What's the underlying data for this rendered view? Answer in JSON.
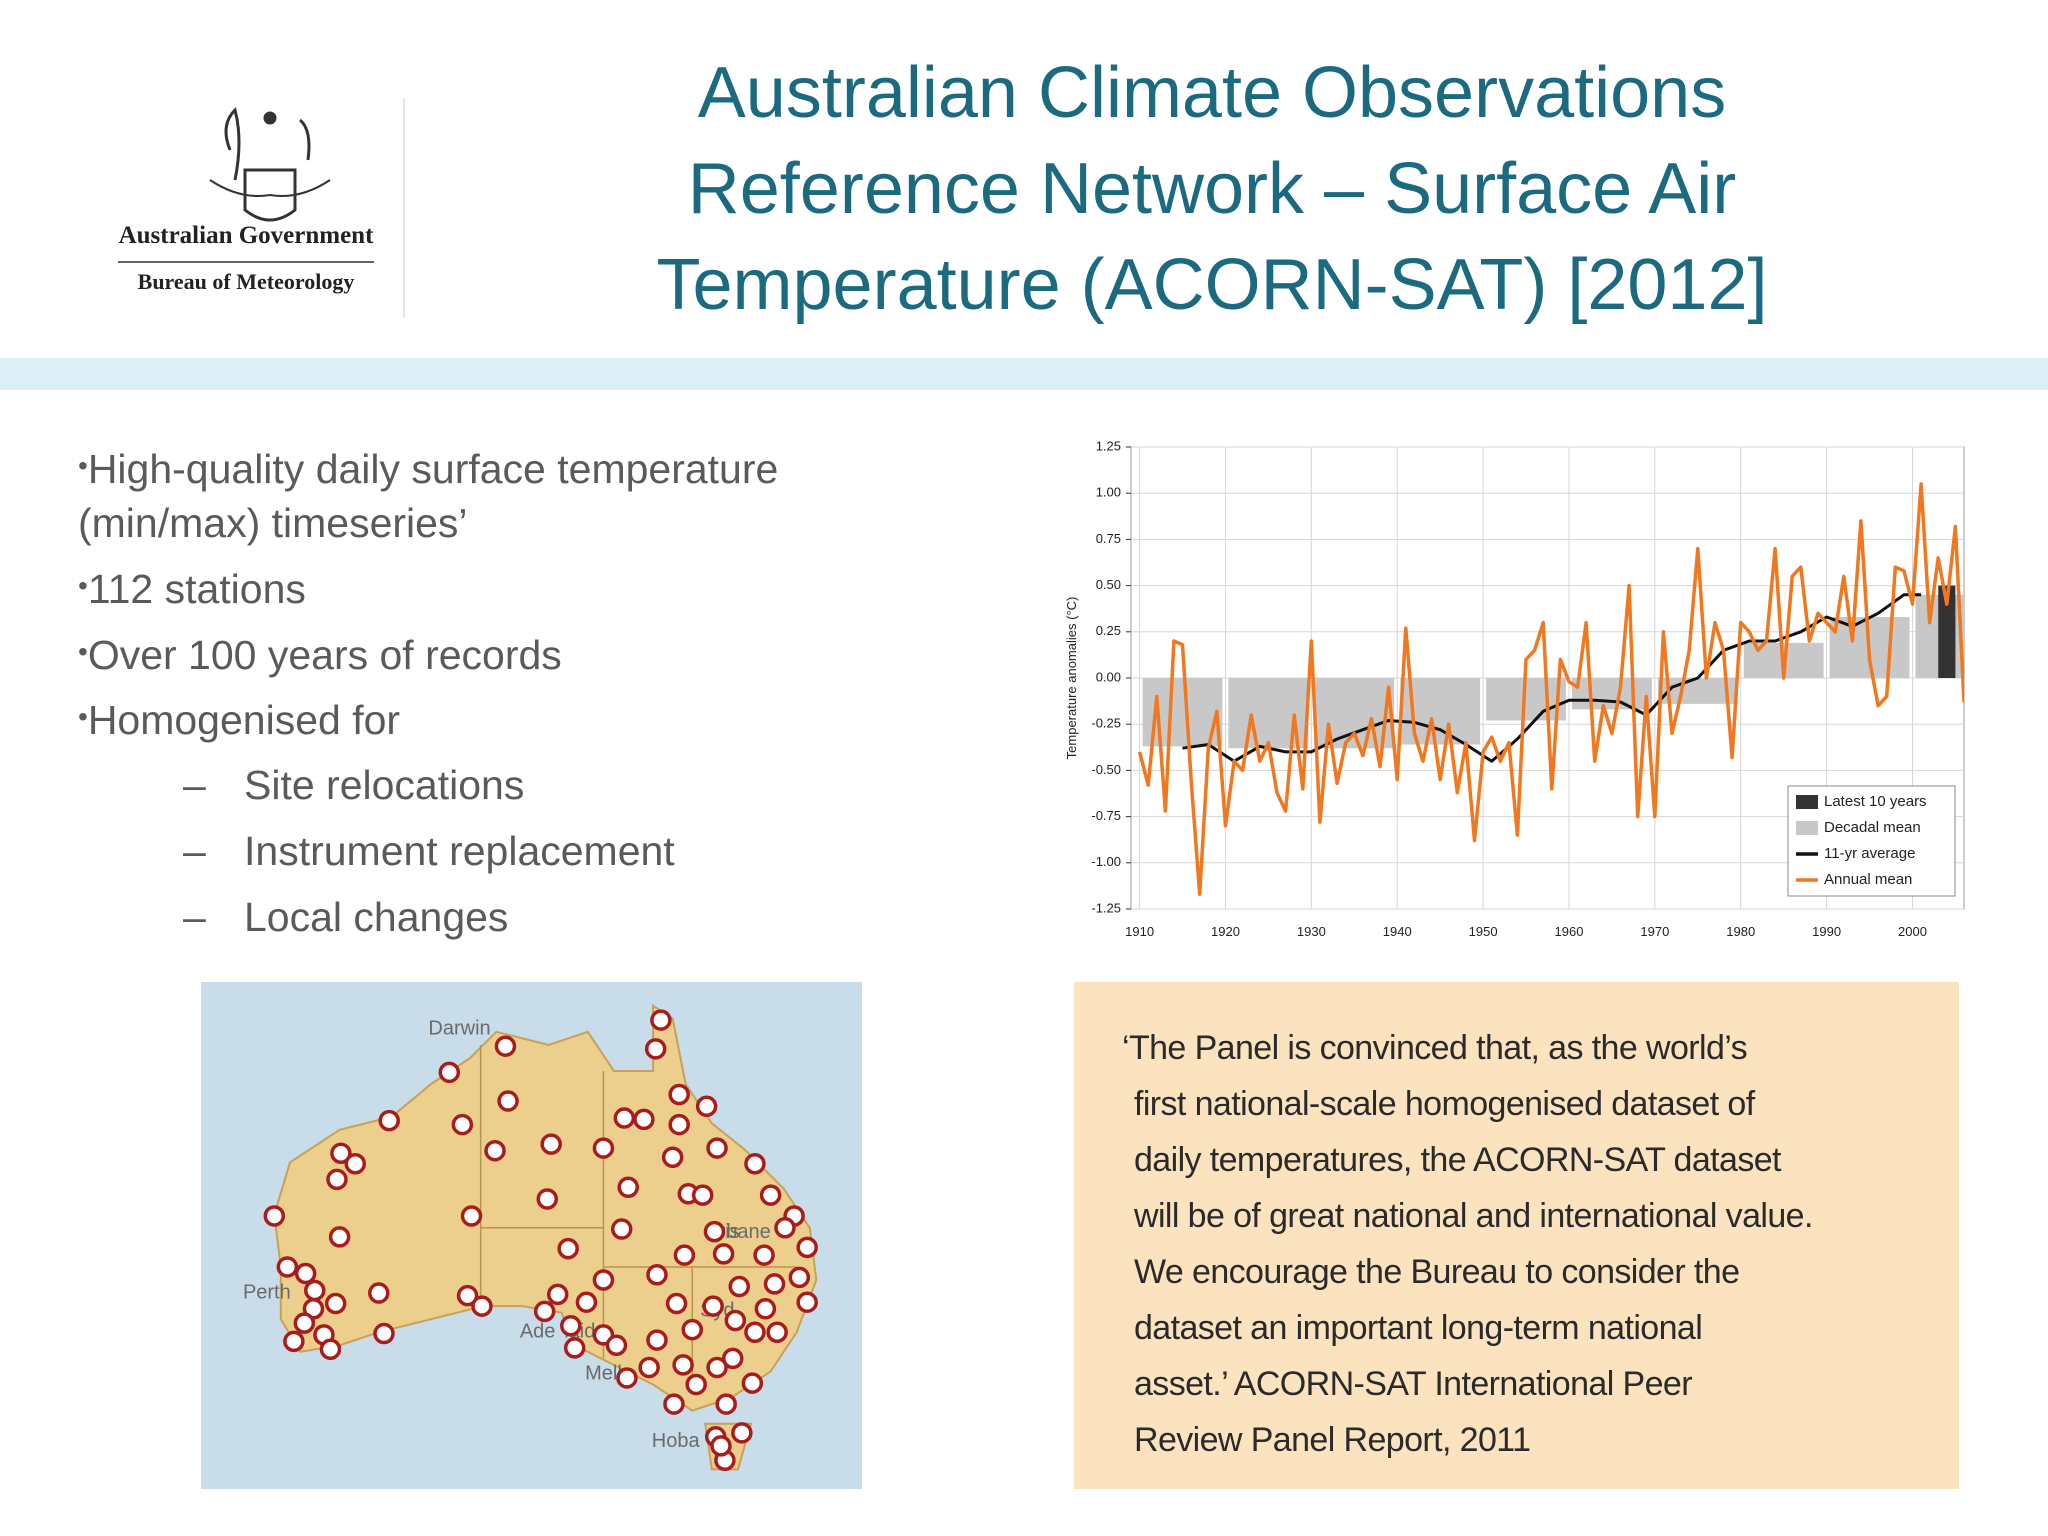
{
  "header": {
    "title_lines": [
      "Australian Climate Observations",
      "Reference Network – Surface Air",
      "Temperature (ACORN-SAT) [2012]"
    ],
    "logo": {
      "line1": "Australian Government",
      "line2": "Bureau of Meteorology"
    }
  },
  "bullets": [
    {
      "text": "High-quality daily surface temperature",
      "continuation": "(min/max) timeseries’"
    },
    {
      "text": "112 stations"
    },
    {
      "text": "Over 100 years of records"
    },
    {
      "text": "Homogenised for",
      "sub": [
        "Site relocations",
        "Instrument replacement",
        "Local changes"
      ]
    }
  ],
  "bullet_symbol": "•",
  "sub_bullet_symbol": "–",
  "map": {
    "labels": [
      "Darwin",
      "Perth",
      "Ade",
      "laide",
      "Bris",
      "bane",
      "Syd",
      "Melb",
      "Hoba"
    ]
  },
  "quote": {
    "lines": [
      "‘The Panel is convinced that, as the world’s",
      "first national-scale homogenised dataset of",
      "daily temperatures, the ACORN-SAT dataset",
      "will be of great national and international value.",
      "We encourage the Bureau to consider the",
      "dataset an important long-term national",
      "asset.’   ACORN-SAT International Peer",
      "Review Panel Report, 2011"
    ]
  },
  "chart_data": {
    "type": "line",
    "y_label": "Temperature anomalies (°C)",
    "xlim": [
      1909,
      2006
    ],
    "xticks": [
      1910,
      1920,
      1930,
      1940,
      1950,
      1960,
      1970,
      1980,
      1990,
      2000
    ],
    "ylim": [
      -1.25,
      1.25
    ],
    "yticks": [
      1.25,
      {
        "value": 1,
        "label": "1.00"
      },
      0.75,
      {
        "value": 0.5,
        "label": "0.50"
      },
      0.25,
      {
        "value": 0,
        "label": "0.00"
      },
      -0.25,
      {
        "value": -0.5,
        "label": "-0.50"
      },
      -0.75,
      {
        "value": -1,
        "label": "-1.00"
      },
      -1.25
    ],
    "grid": true,
    "legend": "lower right",
    "bar_series": [
      {
        "name": "Latest 10 years",
        "color": "#333333",
        "bins": [
          2003,
          2005
        ],
        "values": [
          0.5
        ]
      },
      {
        "name": "Decadal mean",
        "color": "#c8c8c8",
        "bins": [
          1910,
          1920,
          1930,
          1940,
          1950,
          1960,
          1970,
          1980,
          1990,
          2000,
          2010
        ],
        "values": [
          -0.37,
          -0.38,
          -0.38,
          -0.36,
          -0.23,
          -0.17,
          -0.14,
          0.19,
          0.33,
          0.45
        ]
      }
    ],
    "series": [
      {
        "name": "11-yr average",
        "color": "#111111",
        "x": [
          1915,
          1918,
          1921,
          1924,
          1927,
          1930,
          1933,
          1936,
          1939,
          1942,
          1945,
          1948,
          1951,
          1954,
          1957,
          1960,
          1963,
          1966,
          1969,
          1972,
          1975,
          1978,
          1981,
          1984,
          1987,
          1990,
          1993,
          1996,
          1999,
          2001
        ],
        "values": [
          -0.38,
          -0.36,
          -0.45,
          -0.37,
          -0.4,
          -0.4,
          -0.33,
          -0.28,
          -0.23,
          -0.24,
          -0.28,
          -0.36,
          -0.45,
          -0.33,
          -0.18,
          -0.12,
          -0.12,
          -0.13,
          -0.2,
          -0.05,
          0,
          0.15,
          0.2,
          0.2,
          0.25,
          0.33,
          0.28,
          0.35,
          0.45,
          0.45
        ]
      },
      {
        "name": "Annual mean",
        "color": "#f07820",
        "x": [
          1910,
          1911,
          1912,
          1913,
          1914,
          1915,
          1916,
          1917,
          1918,
          1919,
          1920,
          1921,
          1922,
          1923,
          1924,
          1925,
          1926,
          1927,
          1928,
          1929,
          1930,
          1931,
          1932,
          1933,
          1934,
          1935,
          1936,
          1937,
          1938,
          1939,
          1940,
          1941,
          1942,
          1943,
          1944,
          1945,
          1946,
          1947,
          1948,
          1949,
          1950,
          1951,
          1952,
          1953,
          1954,
          1955,
          1956,
          1957,
          1958,
          1959,
          1960,
          1961,
          1962,
          1963,
          1964,
          1965,
          1966,
          1967,
          1968,
          1969,
          1970,
          1971,
          1972,
          1973,
          1974,
          1975,
          1976,
          1977,
          1978,
          1979,
          1980,
          1981,
          1982,
          1983,
          1984,
          1985,
          1986,
          1987,
          1988,
          1989,
          1990,
          1991,
          1992,
          1993,
          1994,
          1995,
          1996,
          1997,
          1998,
          1999,
          2000,
          2001,
          2002,
          2003,
          2004,
          2005,
          2006
        ],
        "values": [
          -0.4,
          -0.58,
          -0.1,
          -0.72,
          0.2,
          0.18,
          -0.55,
          -1.17,
          -0.38,
          -0.18,
          -0.8,
          -0.45,
          -0.5,
          -0.2,
          -0.45,
          -0.35,
          -0.62,
          -0.72,
          -0.2,
          -0.6,
          0.2,
          -0.78,
          -0.25,
          -0.57,
          -0.35,
          -0.3,
          -0.42,
          -0.22,
          -0.48,
          -0.05,
          -0.55,
          0.27,
          -0.3,
          -0.45,
          -0.22,
          -0.55,
          -0.25,
          -0.62,
          -0.35,
          -0.88,
          -0.4,
          -0.32,
          -0.45,
          -0.35,
          -0.85,
          0.1,
          0.15,
          0.3,
          -0.6,
          0.1,
          -0.02,
          -0.05,
          0.3,
          -0.45,
          -0.15,
          -0.3,
          -0.05,
          0.5,
          -0.75,
          -0.1,
          -0.75,
          0.25,
          -0.3,
          -0.1,
          0.15,
          0.7,
          0,
          0.3,
          0.15,
          -0.43,
          0.3,
          0.25,
          0.15,
          0.2,
          0.7,
          0,
          0.55,
          0.6,
          0.2,
          0.35,
          0.3,
          0.25,
          0.55,
          0.2,
          0.85,
          0.1,
          -0.15,
          -0.1,
          0.6,
          0.58,
          0.4,
          1.05,
          0.3,
          0.65,
          0.4,
          0.82,
          -0.13
        ]
      }
    ]
  }
}
